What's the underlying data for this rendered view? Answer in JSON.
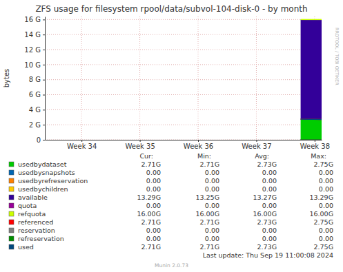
{
  "chart_data": {
    "type": "area",
    "title": "ZFS usage for filesystem rpool/data/subvol-104-disk-0 - by month",
    "y_label": "bytes",
    "stacked": true,
    "grid": true,
    "legend": "bottom",
    "x": [
      37.76,
      37.9,
      38.0,
      38.12
    ],
    "xlim": [
      33.37,
      38.12
    ],
    "xticks": [
      {
        "value": 34,
        "label": "Week 34"
      },
      {
        "value": 35,
        "label": "Week 35"
      },
      {
        "value": 36,
        "label": "Week 36"
      },
      {
        "value": 37,
        "label": "Week 37"
      },
      {
        "value": 38,
        "label": "Week 38"
      }
    ],
    "ylim": [
      0,
      16.4
    ],
    "yticks": [
      {
        "value": 0,
        "label": "0"
      },
      {
        "value": 2,
        "label": "2 G"
      },
      {
        "value": 4,
        "label": "4 G"
      },
      {
        "value": 6,
        "label": "6 G"
      },
      {
        "value": 8,
        "label": "8 G"
      },
      {
        "value": 10,
        "label": "10 G"
      },
      {
        "value": 12,
        "label": "12 G"
      },
      {
        "value": 14,
        "label": "14 G"
      },
      {
        "value": 16,
        "label": "16 G"
      }
    ],
    "stat_headers": [
      "Cur:",
      "Min:",
      "Avg:",
      "Max:"
    ],
    "series": [
      {
        "name": "usedbydataset",
        "color": "#00cc00",
        "type": "area",
        "values": [
          2.75,
          2.73,
          2.72,
          2.71
        ],
        "stats": [
          {
            "value": 2.71,
            "label": "2.71G"
          },
          {
            "value": 2.71,
            "label": "2.71G"
          },
          {
            "value": 2.73,
            "label": "2.73G"
          },
          {
            "value": 2.75,
            "label": "2.75G"
          }
        ]
      },
      {
        "name": "usedbysnapshots",
        "color": "#0066b3",
        "type": "area",
        "values": [
          0,
          0,
          0,
          0
        ],
        "stats": [
          {
            "value": 0,
            "label": "0.00"
          },
          {
            "value": 0,
            "label": "0.00"
          },
          {
            "value": 0,
            "label": "0.00"
          },
          {
            "value": 0,
            "label": "0.00"
          }
        ]
      },
      {
        "name": "usedbyrefreservation",
        "color": "#ff8000",
        "type": "area",
        "values": [
          0,
          0,
          0,
          0
        ],
        "stats": [
          {
            "value": 0,
            "label": "0.00"
          },
          {
            "value": 0,
            "label": "0.00"
          },
          {
            "value": 0,
            "label": "0.00"
          },
          {
            "value": 0,
            "label": "0.00"
          }
        ]
      },
      {
        "name": "usedbychildren",
        "color": "#ffcc00",
        "type": "area",
        "values": [
          0,
          0,
          0,
          0
        ],
        "stats": [
          {
            "value": 0,
            "label": "0.00"
          },
          {
            "value": 0,
            "label": "0.00"
          },
          {
            "value": 0,
            "label": "0.00"
          },
          {
            "value": 0,
            "label": "0.00"
          }
        ]
      },
      {
        "name": "available",
        "color": "#330099",
        "type": "area",
        "values": [
          13.25,
          13.27,
          13.28,
          13.29
        ],
        "stats": [
          {
            "value": 13.29,
            "label": "13.29G"
          },
          {
            "value": 13.25,
            "label": "13.25G"
          },
          {
            "value": 13.27,
            "label": "13.27G"
          },
          {
            "value": 13.29,
            "label": "13.29G"
          }
        ]
      },
      {
        "name": "quota",
        "color": "#990099",
        "type": "line",
        "values": [
          0,
          0,
          0,
          0
        ],
        "stats": [
          {
            "value": 0,
            "label": "0.00"
          },
          {
            "value": 0,
            "label": "0.00"
          },
          {
            "value": 0,
            "label": "0.00"
          },
          {
            "value": 0,
            "label": "0.00"
          }
        ]
      },
      {
        "name": "refquota",
        "color": "#ccff00",
        "type": "line",
        "values": [
          16,
          16,
          16,
          16
        ],
        "stats": [
          {
            "value": 16,
            "label": "16.00G"
          },
          {
            "value": 16,
            "label": "16.00G"
          },
          {
            "value": 16,
            "label": "16.00G"
          },
          {
            "value": 16,
            "label": "16.00G"
          }
        ]
      },
      {
        "name": "referenced",
        "color": "#ff0000",
        "type": "line",
        "values": [
          2.75,
          2.73,
          2.72,
          2.71
        ],
        "stats": [
          {
            "value": 2.71,
            "label": "2.71G"
          },
          {
            "value": 2.71,
            "label": "2.71G"
          },
          {
            "value": 2.73,
            "label": "2.73G"
          },
          {
            "value": 2.75,
            "label": "2.75G"
          }
        ]
      },
      {
        "name": "reservation",
        "color": "#808080",
        "type": "line",
        "values": [
          0,
          0,
          0,
          0
        ],
        "stats": [
          {
            "value": 0,
            "label": "0.00"
          },
          {
            "value": 0,
            "label": "0.00"
          },
          {
            "value": 0,
            "label": "0.00"
          },
          {
            "value": 0,
            "label": "0.00"
          }
        ]
      },
      {
        "name": "refreservation",
        "color": "#008f00",
        "type": "line",
        "values": [
          0,
          0,
          0,
          0
        ],
        "stats": [
          {
            "value": 0,
            "label": "0.00"
          },
          {
            "value": 0,
            "label": "0.00"
          },
          {
            "value": 0,
            "label": "0.00"
          },
          {
            "value": 0,
            "label": "0.00"
          }
        ]
      },
      {
        "name": "used",
        "color": "#00487d",
        "type": "line",
        "values": [
          2.75,
          2.73,
          2.72,
          2.71
        ],
        "stats": [
          {
            "value": 2.71,
            "label": "2.71G"
          },
          {
            "value": 2.71,
            "label": "2.71G"
          },
          {
            "value": 2.73,
            "label": "2.73G"
          },
          {
            "value": 2.75,
            "label": "2.75G"
          }
        ]
      }
    ],
    "last_update": "Last update: Thu Sep 19 11:00:08 2024",
    "footer": "Munin 2.0.73",
    "watermark": "RRDTOOL / TOBI OETIKER"
  }
}
